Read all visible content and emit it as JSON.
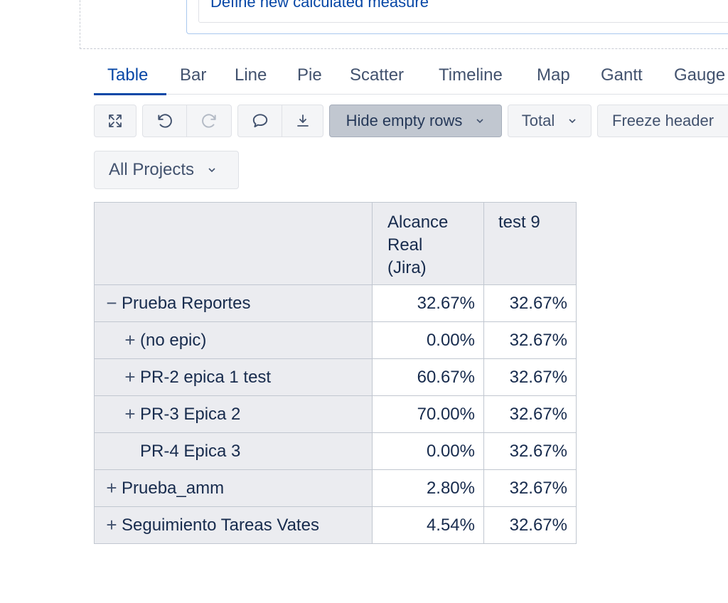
{
  "measure": {
    "link_text": "Define new calculated measure"
  },
  "tabs": [
    {
      "label": "Table",
      "active": true
    },
    {
      "label": "Bar"
    },
    {
      "label": "Line"
    },
    {
      "label": "Pie"
    },
    {
      "label": "Scatter"
    },
    {
      "label": "Timeline"
    },
    {
      "label": "Map"
    },
    {
      "label": "Gantt"
    },
    {
      "label": "Gauge"
    }
  ],
  "toolbar": {
    "hide_empty_rows": "Hide empty rows",
    "total": "Total",
    "freeze_header": "Freeze header",
    "icons": [
      "expand-icon",
      "undo-icon",
      "redo-icon",
      "comment-icon",
      "download-icon"
    ]
  },
  "filter": {
    "projects_label": "All Projects"
  },
  "table": {
    "columns": [
      "Alcance Real (Jira)",
      "test 9"
    ],
    "column_lines": [
      [
        "Alcance",
        "Real",
        "(Jira)"
      ],
      [
        "test 9"
      ]
    ],
    "rows": [
      {
        "label": "Prueba Reportes",
        "expander": "−",
        "level": 0,
        "values": [
          "32.67%",
          "32.67%"
        ]
      },
      {
        "label": "(no epic)",
        "expander": "+",
        "level": 1,
        "values": [
          "0.00%",
          "32.67%"
        ]
      },
      {
        "label": "PR-2 epica 1 test",
        "expander": "+",
        "level": 1,
        "values": [
          "60.67%",
          "32.67%"
        ]
      },
      {
        "label": "PR-3 Epica 2",
        "expander": "+",
        "level": 1,
        "values": [
          "70.00%",
          "32.67%"
        ]
      },
      {
        "label": "PR-4 Epica 3",
        "expander": "",
        "level": 1,
        "values": [
          "0.00%",
          "32.67%"
        ]
      },
      {
        "label": "Prueba_amm",
        "expander": "+",
        "level": 0,
        "values": [
          "2.80%",
          "32.67%"
        ]
      },
      {
        "label": "Seguimiento Tareas Vates",
        "expander": "+",
        "level": 0,
        "values": [
          "4.54%",
          "32.67%"
        ]
      }
    ]
  },
  "colors": {
    "accent": "#0747a6",
    "selected_button": "#c1c7d0",
    "header_bg": "#ebecf0"
  }
}
